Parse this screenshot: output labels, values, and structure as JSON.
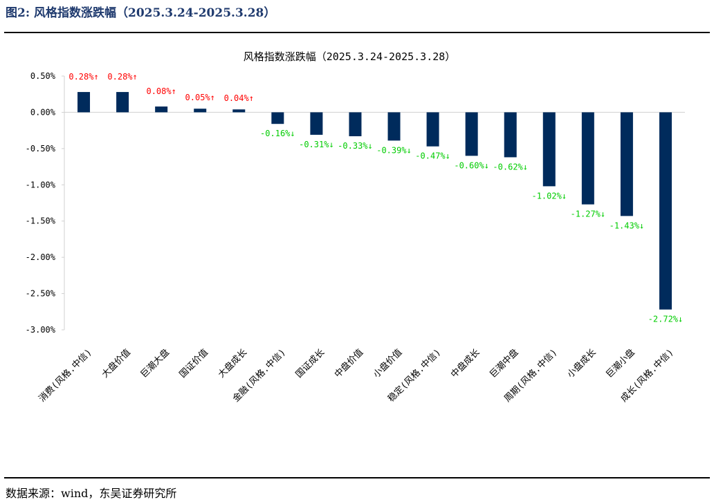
{
  "figure": {
    "title": "图2:  风格指数涨跌幅（2025.3.24-2025.3.28）",
    "source": "数据来源：wind，东吴证券研究所"
  },
  "colors": {
    "bar": "#002b5c",
    "positive_label": "#ff0000",
    "negative_label": "#00cc00",
    "axis": "#d0d0d0",
    "text": "#000000"
  },
  "chart_data": {
    "type": "bar",
    "title": "风格指数涨跌幅（2025.3.24-2025.3.28）",
    "xlabel": "",
    "ylabel": "",
    "ylim": [
      -3.0,
      0.5
    ],
    "yticks": [
      "0.50%",
      "0.00%",
      "-0.50%",
      "-1.00%",
      "-1.50%",
      "-2.00%",
      "-2.50%",
      "-3.00%"
    ],
    "ytick_values": [
      0.5,
      0.0,
      -0.5,
      -1.0,
      -1.5,
      -2.0,
      -2.5,
      -3.0
    ],
    "grid": false,
    "legend": "none",
    "categories": [
      "消费(风格.中信)",
      "大盘价值",
      "巨潮大盘",
      "国证价值",
      "大盘成长",
      "金融(风格.中信)",
      "国证成长",
      "中盘价值",
      "小盘价值",
      "稳定(风格.中信)",
      "中盘成长",
      "巨潮中盘",
      "周期(风格.中信)",
      "小盘成长",
      "巨潮小盘",
      "成长(风格.中信)"
    ],
    "values": [
      0.28,
      0.28,
      0.08,
      0.05,
      0.04,
      -0.16,
      -0.31,
      -0.33,
      -0.39,
      -0.47,
      -0.6,
      -0.62,
      -1.02,
      -1.27,
      -1.43,
      -2.72
    ],
    "data_labels": [
      "0.28%↑",
      "0.28%↑",
      "0.08%↑",
      "0.05%↑",
      "0.04%↑",
      "-0.16%↓",
      "-0.31%↓",
      "-0.33%↓",
      "-0.39%↓",
      "-0.47%↓",
      "-0.60%↓",
      "-0.62%↓",
      "-1.02%↓",
      "-1.27%↓",
      "-1.43%↓",
      "-2.72%↓"
    ]
  }
}
